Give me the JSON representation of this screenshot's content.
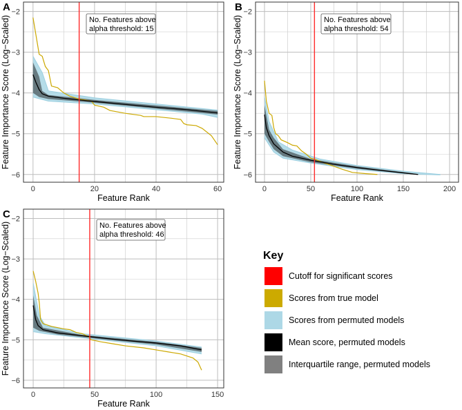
{
  "colors": {
    "threshold": "#FF2A2A",
    "true_model": "#CCA800",
    "permuted": "#ADD8E6",
    "mean": "#000000",
    "iqr": "#4D5A5E"
  },
  "chart_data": [
    {
      "type": "line",
      "panel": "A",
      "xlabel": "Feature Rank",
      "ylabel": "Feature Importance Score (Log−Scaled)",
      "xlim": [
        -3.1,
        62
      ],
      "ylim": [
        -6.19,
        -1.77
      ],
      "xticks": [
        0,
        20,
        40,
        60
      ],
      "xtick_labels": [
        "0",
        "20",
        "40",
        "60"
      ],
      "yticks": [
        -2,
        -3,
        -4,
        -5,
        -6
      ],
      "ytick_labels": [
        "−2",
        "−3",
        "−4",
        "−5",
        "−6"
      ],
      "threshold": 15,
      "annotation": [
        "No. Features above",
        "alpha threshold: 15"
      ],
      "true_model": [
        [
          0,
          -2.15
        ],
        [
          1,
          -2.6
        ],
        [
          2,
          -3.05
        ],
        [
          3,
          -3.1
        ],
        [
          4,
          -3.35
        ],
        [
          5,
          -3.45
        ],
        [
          6,
          -3.83
        ],
        [
          8,
          -3.87
        ],
        [
          10,
          -4.0
        ],
        [
          12,
          -4.08
        ],
        [
          15,
          -4.15
        ],
        [
          19,
          -4.2
        ],
        [
          20,
          -4.3
        ],
        [
          23,
          -4.35
        ],
        [
          25,
          -4.43
        ],
        [
          30,
          -4.5
        ],
        [
          35,
          -4.55
        ],
        [
          36,
          -4.58
        ],
        [
          40,
          -4.58
        ],
        [
          45,
          -4.62
        ],
        [
          48,
          -4.65
        ],
        [
          49,
          -4.75
        ],
        [
          50,
          -4.78
        ],
        [
          53,
          -4.8
        ],
        [
          55,
          -4.87
        ],
        [
          58,
          -5.05
        ],
        [
          60,
          -5.27
        ]
      ],
      "mean": [
        [
          0,
          -3.55
        ],
        [
          1,
          -3.75
        ],
        [
          2,
          -3.92
        ],
        [
          3,
          -4.02
        ],
        [
          5,
          -4.08
        ],
        [
          10,
          -4.13
        ],
        [
          15,
          -4.17
        ],
        [
          20,
          -4.21
        ],
        [
          30,
          -4.28
        ],
        [
          40,
          -4.35
        ],
        [
          50,
          -4.41
        ],
        [
          60,
          -4.49
        ]
      ],
      "iqr_upper": [
        [
          0,
          -3.25
        ],
        [
          2,
          -3.6
        ],
        [
          3,
          -3.95
        ],
        [
          5,
          -4.05
        ],
        [
          20,
          -4.17
        ],
        [
          60,
          -4.44
        ]
      ],
      "iqr_lower": [
        [
          0,
          -4.0
        ],
        [
          2,
          -4.1
        ],
        [
          5,
          -4.15
        ],
        [
          20,
          -4.24
        ],
        [
          60,
          -4.53
        ]
      ],
      "perm_upper": [
        [
          0,
          -3.1
        ],
        [
          3,
          -3.5
        ],
        [
          5,
          -3.95
        ],
        [
          20,
          -4.12
        ],
        [
          60,
          -4.42
        ]
      ],
      "perm_lower": [
        [
          0,
          -4.1
        ],
        [
          5,
          -4.2
        ],
        [
          20,
          -4.27
        ],
        [
          55,
          -4.52
        ],
        [
          60,
          -4.6
        ]
      ]
    },
    {
      "type": "line",
      "panel": "B",
      "xlabel": "Feature Rank",
      "ylabel": "Feature Importance Score (Log−Scaled)",
      "xlim": [
        -9.7,
        209.7
      ],
      "ylim": [
        -6.19,
        -1.77
      ],
      "xticks": [
        0,
        50,
        100,
        150,
        200
      ],
      "xtick_labels": [
        "0",
        "50",
        "100",
        "150",
        "200"
      ],
      "yticks": [
        -2,
        -3,
        -4,
        -5,
        -6
      ],
      "ytick_labels": [
        "−2",
        "−3",
        "−4",
        "−5",
        "−6"
      ],
      "threshold": 54,
      "annotation": [
        "No. Features above",
        "alpha threshold: 54"
      ],
      "true_model": [
        [
          0,
          -3.7
        ],
        [
          2,
          -4.2
        ],
        [
          5,
          -4.5
        ],
        [
          8,
          -4.55
        ],
        [
          10,
          -4.85
        ],
        [
          12,
          -5.0
        ],
        [
          15,
          -5.05
        ],
        [
          18,
          -5.15
        ],
        [
          25,
          -5.22
        ],
        [
          30,
          -5.28
        ],
        [
          35,
          -5.3
        ],
        [
          40,
          -5.42
        ],
        [
          45,
          -5.5
        ],
        [
          50,
          -5.6
        ],
        [
          55,
          -5.63
        ],
        [
          65,
          -5.72
        ],
        [
          75,
          -5.8
        ],
        [
          85,
          -5.88
        ],
        [
          95,
          -5.95
        ],
        [
          110,
          -5.98
        ],
        [
          122,
          -6.0
        ]
      ],
      "mean": [
        [
          0,
          -4.53
        ],
        [
          2,
          -4.85
        ],
        [
          5,
          -5.05
        ],
        [
          10,
          -5.25
        ],
        [
          20,
          -5.45
        ],
        [
          30,
          -5.55
        ],
        [
          50,
          -5.65
        ],
        [
          75,
          -5.75
        ],
        [
          100,
          -5.83
        ],
        [
          125,
          -5.9
        ],
        [
          150,
          -5.96
        ],
        [
          166,
          -6.0
        ]
      ],
      "iqr_upper": [
        [
          0,
          -4.3
        ],
        [
          5,
          -4.9
        ],
        [
          10,
          -5.1
        ],
        [
          20,
          -5.38
        ],
        [
          50,
          -5.62
        ],
        [
          100,
          -5.8
        ],
        [
          160,
          -5.97
        ]
      ],
      "iqr_lower": [
        [
          0,
          -5.0
        ],
        [
          5,
          -5.2
        ],
        [
          10,
          -5.38
        ],
        [
          20,
          -5.55
        ],
        [
          50,
          -5.7
        ],
        [
          100,
          -5.86
        ],
        [
          166,
          -6.01
        ]
      ],
      "perm_upper": [
        [
          0,
          -4.1
        ],
        [
          5,
          -4.7
        ],
        [
          15,
          -5.2
        ],
        [
          30,
          -5.4
        ],
        [
          60,
          -5.62
        ],
        [
          100,
          -5.78
        ],
        [
          150,
          -5.92
        ],
        [
          190,
          -6.0
        ]
      ],
      "perm_lower": [
        [
          0,
          -5.1
        ],
        [
          10,
          -5.45
        ],
        [
          20,
          -5.6
        ],
        [
          50,
          -5.72
        ],
        [
          100,
          -5.88
        ],
        [
          150,
          -5.98
        ],
        [
          190,
          -6.01
        ]
      ]
    },
    {
      "type": "line",
      "panel": "C",
      "xlabel": "Feature Rank",
      "ylabel": "Feature Importance Score (Log−Scaled)",
      "xlim": [
        -7.9,
        155
      ],
      "ylim": [
        -6.19,
        -1.77
      ],
      "xticks": [
        0,
        50,
        100,
        150
      ],
      "xtick_labels": [
        "0",
        "50",
        "100",
        "150"
      ],
      "yticks": [
        -2,
        -3,
        -4,
        -5,
        -6
      ],
      "ytick_labels": [
        "−2",
        "−3",
        "−4",
        "−5",
        "−6"
      ],
      "threshold": 46,
      "annotation": [
        "No. Features above",
        "alpha threshold: 46"
      ],
      "true_model": [
        [
          0,
          -3.3
        ],
        [
          2,
          -3.55
        ],
        [
          4,
          -3.85
        ],
        [
          5,
          -4.1
        ],
        [
          6,
          -4.5
        ],
        [
          8,
          -4.6
        ],
        [
          15,
          -4.67
        ],
        [
          25,
          -4.73
        ],
        [
          30,
          -4.75
        ],
        [
          35,
          -4.82
        ],
        [
          40,
          -4.85
        ],
        [
          45,
          -4.92
        ],
        [
          47,
          -5.0
        ],
        [
          55,
          -5.05
        ],
        [
          65,
          -5.1
        ],
        [
          75,
          -5.15
        ],
        [
          90,
          -5.2
        ],
        [
          100,
          -5.25
        ],
        [
          110,
          -5.3
        ],
        [
          120,
          -5.35
        ],
        [
          130,
          -5.45
        ],
        [
          134,
          -5.55
        ],
        [
          137,
          -5.75
        ]
      ],
      "mean": [
        [
          0,
          -4.15
        ],
        [
          2,
          -4.5
        ],
        [
          4,
          -4.65
        ],
        [
          8,
          -4.75
        ],
        [
          20,
          -4.83
        ],
        [
          40,
          -4.9
        ],
        [
          60,
          -4.97
        ],
        [
          80,
          -5.03
        ],
        [
          100,
          -5.08
        ],
        [
          120,
          -5.15
        ],
        [
          137,
          -5.25
        ]
      ],
      "iqr_upper": [
        [
          0,
          -3.9
        ],
        [
          3,
          -4.4
        ],
        [
          8,
          -4.7
        ],
        [
          40,
          -4.88
        ],
        [
          100,
          -5.05
        ],
        [
          137,
          -5.2
        ]
      ],
      "iqr_lower": [
        [
          0,
          -4.7
        ],
        [
          5,
          -4.78
        ],
        [
          20,
          -4.87
        ],
        [
          60,
          -5.0
        ],
        [
          100,
          -5.12
        ],
        [
          137,
          -5.3
        ]
      ],
      "perm_upper": [
        [
          0,
          -3.6
        ],
        [
          5,
          -4.4
        ],
        [
          10,
          -4.65
        ],
        [
          40,
          -4.85
        ],
        [
          100,
          -5.03
        ],
        [
          137,
          -5.18
        ]
      ],
      "perm_lower": [
        [
          0,
          -4.8
        ],
        [
          10,
          -4.85
        ],
        [
          40,
          -4.95
        ],
        [
          100,
          -5.15
        ],
        [
          137,
          -5.35
        ]
      ]
    }
  ],
  "key": {
    "title": "Key",
    "items": [
      {
        "label": "Cutoff for significant scores",
        "color": "#FF0000"
      },
      {
        "label": "Scores from true model",
        "color": "#CCAA00"
      },
      {
        "label": "Scores from permuted models",
        "color": "#ADD8E6"
      },
      {
        "label": "Mean score, permuted models",
        "color": "#000000"
      },
      {
        "label": "Interquartile range, permuted models",
        "color": "#808080"
      }
    ]
  }
}
